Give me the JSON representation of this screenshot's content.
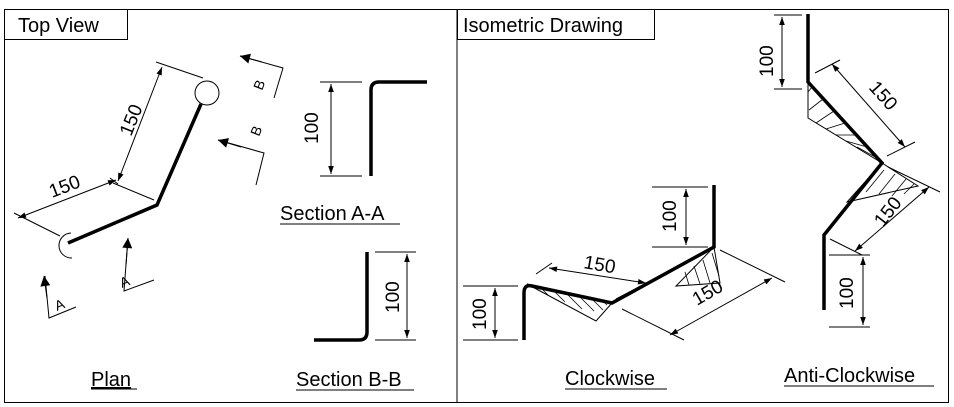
{
  "panels": {
    "top_view_title": "Top View",
    "isometric_title": "Isometric Drawing"
  },
  "top_view": {
    "dim_150_a": "150",
    "dim_150_b": "150",
    "section_mark_a": "A",
    "section_mark_b": "B",
    "plan_caption": "Plan"
  },
  "sections": {
    "a_a": {
      "dim": "100",
      "caption": "Section A-A"
    },
    "b_b": {
      "dim": "100",
      "caption": "Section B-B"
    }
  },
  "isometric": {
    "clockwise": {
      "dim_100_left": "100",
      "dim_100_right": "100",
      "dim_150_top": "150",
      "dim_150_bottom": "150",
      "caption": "Clockwise"
    },
    "anticlockwise": {
      "dim_100_top": "100",
      "dim_150_upper": "150",
      "dim_150_lower": "150",
      "dim_100_bottom": "100",
      "caption": "Anti-Clockwise"
    }
  }
}
